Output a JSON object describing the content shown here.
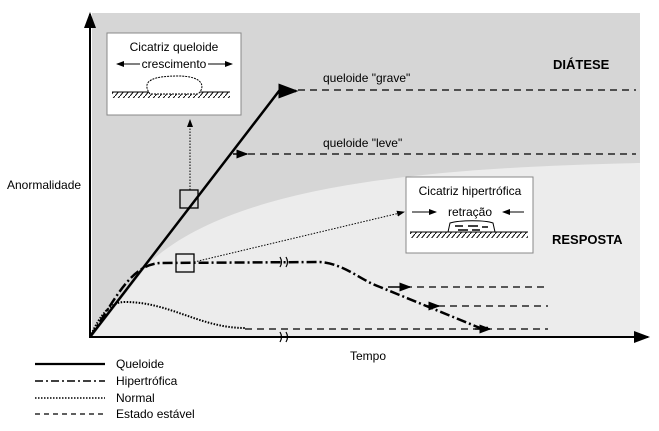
{
  "axes": {
    "ylabel": "Anormalidade",
    "xlabel": "Tempo"
  },
  "regions": {
    "upper": "DIÁTESE",
    "lower": "RESPOSTA"
  },
  "labels": {
    "severe": "queloide \"grave\"",
    "mild": "queloide \"leve\""
  },
  "keloid_box": {
    "title": "Cicatriz queloide",
    "subtitle": "crescimento"
  },
  "hypertrophic_box": {
    "title": "Cicatriz hipertrófica",
    "subtitle": "retração"
  },
  "legend": [
    {
      "label": "Queloide",
      "style": "solid"
    },
    {
      "label": "Hipertrófica",
      "style": "dash-dot"
    },
    {
      "label": "Normal",
      "style": "dotted"
    },
    {
      "label": "Estado estável",
      "style": "dashed"
    }
  ],
  "colors": {
    "diathesis": "#d6d6d6",
    "response": "#ececec"
  }
}
